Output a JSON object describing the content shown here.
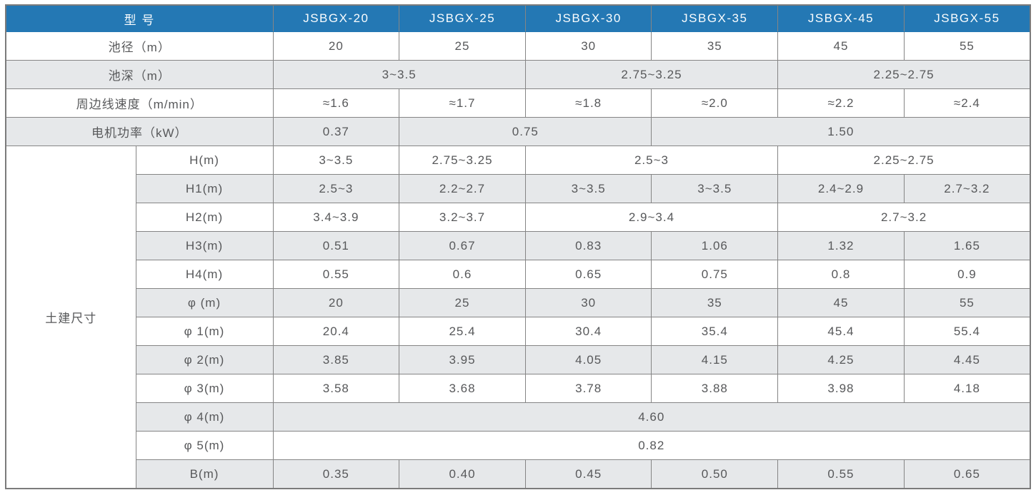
{
  "table": {
    "header": {
      "model_label": "型 号",
      "models": [
        "JSBGX-20",
        "JSBGX-25",
        "JSBGX-30",
        "JSBGX-35",
        "JSBGX-45",
        "JSBGX-55"
      ]
    },
    "spec_rows": [
      {
        "label": "池径（m）",
        "cells": [
          "20",
          "25",
          "30",
          "35",
          "45",
          "55"
        ]
      },
      {
        "label": "池深（m）",
        "cells": [
          "3~3.5",
          "2.75~3.25",
          "2.25~2.75"
        ]
      },
      {
        "label": "周边线速度（m/min）",
        "cells": [
          "≈1.6",
          "≈1.7",
          "≈1.8",
          "≈2.0",
          "≈2.2",
          "≈2.4"
        ]
      },
      {
        "label": "电机功率（kW）",
        "cells": [
          "0.37",
          "0.75",
          "1.50"
        ]
      }
    ],
    "civil_section": {
      "label": "土建尺寸",
      "rows": [
        {
          "label": "H(m)",
          "cells": [
            "3~3.5",
            "2.75~3.25",
            "2.5~3",
            "2.25~2.75"
          ]
        },
        {
          "label": "H1(m)",
          "cells": [
            "2.5~3",
            "2.2~2.7",
            "3~3.5",
            "3~3.5",
            "2.4~2.9",
            "2.7~3.2"
          ]
        },
        {
          "label": "H2(m)",
          "cells": [
            "3.4~3.9",
            "3.2~3.7",
            "2.9~3.4",
            "2.7~3.2"
          ]
        },
        {
          "label": "H3(m)",
          "cells": [
            "0.51",
            "0.67",
            "0.83",
            "1.06",
            "1.32",
            "1.65"
          ]
        },
        {
          "label": "H4(m)",
          "cells": [
            "0.55",
            "0.6",
            "0.65",
            "0.75",
            "0.8",
            "0.9"
          ]
        },
        {
          "label": "φ (m)",
          "cells": [
            "20",
            "25",
            "30",
            "35",
            "45",
            "55"
          ]
        },
        {
          "label": "φ 1(m)",
          "cells": [
            "20.4",
            "25.4",
            "30.4",
            "35.4",
            "45.4",
            "55.4"
          ]
        },
        {
          "label": "φ 2(m)",
          "cells": [
            "3.85",
            "3.95",
            "4.05",
            "4.15",
            "4.25",
            "4.45"
          ]
        },
        {
          "label": "φ 3(m)",
          "cells": [
            "3.58",
            "3.68",
            "3.78",
            "3.88",
            "3.98",
            "4.18"
          ]
        },
        {
          "label": "φ 4(m)",
          "cells": [
            "4.60"
          ]
        },
        {
          "label": "φ 5(m)",
          "cells": [
            "0.82"
          ]
        },
        {
          "label": "B(m)",
          "cells": [
            "0.35",
            "0.40",
            "0.45",
            "0.50",
            "0.55",
            "0.65"
          ]
        }
      ]
    },
    "colors": {
      "header_bg": "#2478b4",
      "header_text": "#fbfdfe",
      "alt_row_bg": "#e6e8ea",
      "grid_line": "#858585",
      "cell_text": "#57585a"
    }
  }
}
